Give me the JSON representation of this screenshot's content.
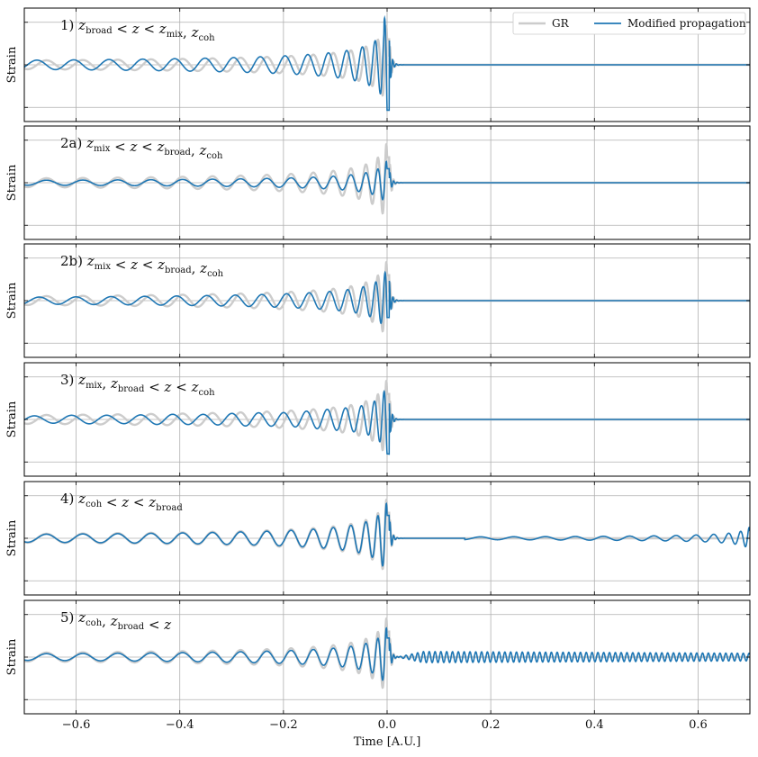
{
  "chart_data": {
    "type": "line",
    "xlabel": "Time [A.U.]",
    "ylabel": "Strain",
    "xlim": [
      -0.7,
      0.7
    ],
    "xticks": [
      -0.6,
      -0.4,
      -0.2,
      0.0,
      0.2,
      0.4,
      0.6
    ],
    "xtick_labels": [
      "−0.6",
      "−0.4",
      "−0.2",
      "0.0",
      "0.2",
      "0.4",
      "0.6"
    ],
    "grid": true,
    "legend": {
      "placement": "top-right",
      "entries": [
        "GR",
        "Modified propagation"
      ]
    },
    "colors": {
      "gr": "#cccccc",
      "modified": "#1f77b4"
    },
    "panels": [
      {
        "label": "1) z_broad < z < z_mix, z_coh",
        "label_parts": [
          "1) ",
          "z",
          "broad",
          " < z < ",
          "z",
          "mix",
          ", ",
          "z",
          "coh"
        ],
        "series": [
          {
            "name": "GR",
            "signal": "chirp",
            "amplitude_scale": 1.0,
            "phase_shift": 0.0
          },
          {
            "name": "Modified propagation",
            "signal": "chirp_phase_shifted",
            "amplitude_scale": 1.05,
            "phase_shift": 1.6,
            "merger_spike": 1.3
          }
        ]
      },
      {
        "label": "2a) z_mix < z < z_broad, z_coh",
        "label_parts": [
          "2a) ",
          "z",
          "mix",
          " < z < ",
          "z",
          "broad",
          ", ",
          "z",
          "coh"
        ],
        "series": [
          {
            "name": "GR",
            "signal": "chirp",
            "amplitude_scale": 1.0
          },
          {
            "name": "Modified propagation",
            "signal": "chirp",
            "amplitude_scale": 0.55
          }
        ]
      },
      {
        "label": "2b) z_mix < z < z_broad, z_coh",
        "label_parts": [
          "2b) ",
          "z",
          "mix",
          " < z < ",
          "z",
          "broad",
          ", ",
          "z",
          "coh"
        ],
        "series": [
          {
            "name": "GR",
            "signal": "chirp",
            "amplitude_scale": 1.0
          },
          {
            "name": "Modified propagation",
            "signal": "chirp_phase_shifted",
            "amplitude_scale": 0.8,
            "phase_shift": 1.2
          }
        ]
      },
      {
        "label": "3) z_mix, z_broad < z < z_coh",
        "label_parts": [
          "3) ",
          "z",
          "mix",
          ", ",
          "z",
          "broad",
          " < z < ",
          "z",
          "coh"
        ],
        "series": [
          {
            "name": "GR",
            "signal": "chirp",
            "amplitude_scale": 1.0
          },
          {
            "name": "Modified propagation",
            "signal": "chirp_distorted",
            "amplitude_scale": 0.9,
            "phase_shift": 2.0
          }
        ]
      },
      {
        "label": "4) z_coh < z < z_broad",
        "label_parts": [
          "4) ",
          "z",
          "coh",
          " < z < ",
          "z",
          "broad"
        ],
        "series": [
          {
            "name": "GR",
            "signal": "chirp",
            "amplitude_scale": 1.0
          },
          {
            "name": "Modified propagation",
            "signal": "chirp_plus_delayed_echo",
            "amplitude_scale": 0.9,
            "echo_amplitude": 0.25,
            "echo_delay": 0.7
          }
        ]
      },
      {
        "label": "5) z_coh, z_broad < z",
        "label_parts": [
          "5) ",
          "z",
          "coh",
          ", ",
          "z",
          "broad",
          " < z"
        ],
        "series": [
          {
            "name": "GR",
            "signal": "chirp",
            "amplitude_scale": 1.0
          },
          {
            "name": "Modified propagation",
            "signal": "chirp_plus_persistent_tail",
            "amplitude_scale": 0.75,
            "tail_amplitude": 0.12
          }
        ]
      }
    ]
  }
}
